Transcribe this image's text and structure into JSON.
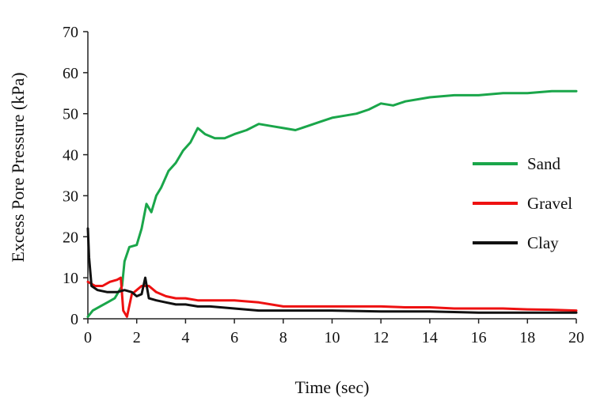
{
  "chart_data": {
    "type": "line",
    "title": "",
    "xlabel": "Time (sec)",
    "ylabel": "Excess Pore Pressure (kPa)",
    "xlim": [
      0,
      20
    ],
    "ylim": [
      0,
      70
    ],
    "x_ticks": [
      0,
      2,
      4,
      6,
      8,
      10,
      12,
      14,
      16,
      18,
      20
    ],
    "y_ticks": [
      0,
      10,
      20,
      30,
      40,
      50,
      60,
      70
    ],
    "grid": false,
    "legend_position": "right",
    "series": [
      {
        "name": "Sand",
        "color": "#1aa64a",
        "points": [
          [
            0.0,
            0.5
          ],
          [
            0.2,
            2.0
          ],
          [
            0.5,
            3.0
          ],
          [
            0.8,
            4.0
          ],
          [
            1.1,
            5.0
          ],
          [
            1.4,
            8.0
          ],
          [
            1.5,
            14.0
          ],
          [
            1.7,
            17.5
          ],
          [
            2.0,
            18.0
          ],
          [
            2.2,
            22.0
          ],
          [
            2.4,
            28.0
          ],
          [
            2.6,
            26.0
          ],
          [
            2.8,
            30.0
          ],
          [
            3.0,
            32.0
          ],
          [
            3.3,
            36.0
          ],
          [
            3.6,
            38.0
          ],
          [
            3.9,
            41.0
          ],
          [
            4.2,
            43.0
          ],
          [
            4.5,
            46.5
          ],
          [
            4.8,
            45.0
          ],
          [
            5.2,
            44.0
          ],
          [
            5.6,
            44.0
          ],
          [
            6.0,
            45.0
          ],
          [
            6.5,
            46.0
          ],
          [
            7.0,
            47.5
          ],
          [
            7.5,
            47.0
          ],
          [
            8.0,
            46.5
          ],
          [
            8.5,
            46.0
          ],
          [
            9.0,
            47.0
          ],
          [
            9.5,
            48.0
          ],
          [
            10.0,
            49.0
          ],
          [
            10.5,
            49.5
          ],
          [
            11.0,
            50.0
          ],
          [
            11.5,
            51.0
          ],
          [
            12.0,
            52.5
          ],
          [
            12.5,
            52.0
          ],
          [
            13.0,
            53.0
          ],
          [
            14.0,
            54.0
          ],
          [
            15.0,
            54.5
          ],
          [
            16.0,
            54.5
          ],
          [
            17.0,
            55.0
          ],
          [
            18.0,
            55.0
          ],
          [
            19.0,
            55.5
          ],
          [
            20.0,
            55.5
          ]
        ]
      },
      {
        "name": "Gravel",
        "color": "#ee1111",
        "points": [
          [
            0.0,
            9.0
          ],
          [
            0.3,
            8.0
          ],
          [
            0.6,
            8.0
          ],
          [
            0.9,
            9.0
          ],
          [
            1.2,
            9.5
          ],
          [
            1.35,
            10.0
          ],
          [
            1.45,
            2.0
          ],
          [
            1.6,
            0.5
          ],
          [
            1.8,
            6.0
          ],
          [
            2.0,
            7.0
          ],
          [
            2.2,
            8.0
          ],
          [
            2.5,
            8.0
          ],
          [
            2.8,
            6.5
          ],
          [
            3.2,
            5.5
          ],
          [
            3.6,
            5.0
          ],
          [
            4.0,
            5.0
          ],
          [
            4.5,
            4.5
          ],
          [
            5.0,
            4.5
          ],
          [
            5.5,
            4.5
          ],
          [
            6.0,
            4.5
          ],
          [
            7.0,
            4.0
          ],
          [
            8.0,
            3.0
          ],
          [
            9.0,
            3.0
          ],
          [
            10.0,
            3.0
          ],
          [
            11.0,
            3.0
          ],
          [
            12.0,
            3.0
          ],
          [
            13.0,
            2.8
          ],
          [
            14.0,
            2.8
          ],
          [
            15.0,
            2.5
          ],
          [
            16.0,
            2.5
          ],
          [
            17.0,
            2.5
          ],
          [
            18.0,
            2.3
          ],
          [
            19.0,
            2.2
          ],
          [
            20.0,
            2.0
          ]
        ]
      },
      {
        "name": "Clay",
        "color": "#111111",
        "points": [
          [
            0.0,
            22.0
          ],
          [
            0.05,
            15.0
          ],
          [
            0.15,
            8.0
          ],
          [
            0.4,
            7.0
          ],
          [
            0.8,
            6.5
          ],
          [
            1.2,
            6.5
          ],
          [
            1.5,
            7.0
          ],
          [
            1.8,
            6.5
          ],
          [
            2.0,
            5.5
          ],
          [
            2.2,
            6.0
          ],
          [
            2.35,
            10.0
          ],
          [
            2.5,
            5.0
          ],
          [
            2.8,
            4.5
          ],
          [
            3.2,
            4.0
          ],
          [
            3.6,
            3.5
          ],
          [
            4.0,
            3.5
          ],
          [
            4.5,
            3.0
          ],
          [
            5.0,
            3.0
          ],
          [
            6.0,
            2.5
          ],
          [
            7.0,
            2.0
          ],
          [
            8.0,
            2.0
          ],
          [
            9.0,
            2.0
          ],
          [
            10.0,
            2.0
          ],
          [
            12.0,
            1.8
          ],
          [
            14.0,
            1.8
          ],
          [
            16.0,
            1.5
          ],
          [
            18.0,
            1.5
          ],
          [
            20.0,
            1.5
          ]
        ]
      }
    ]
  }
}
